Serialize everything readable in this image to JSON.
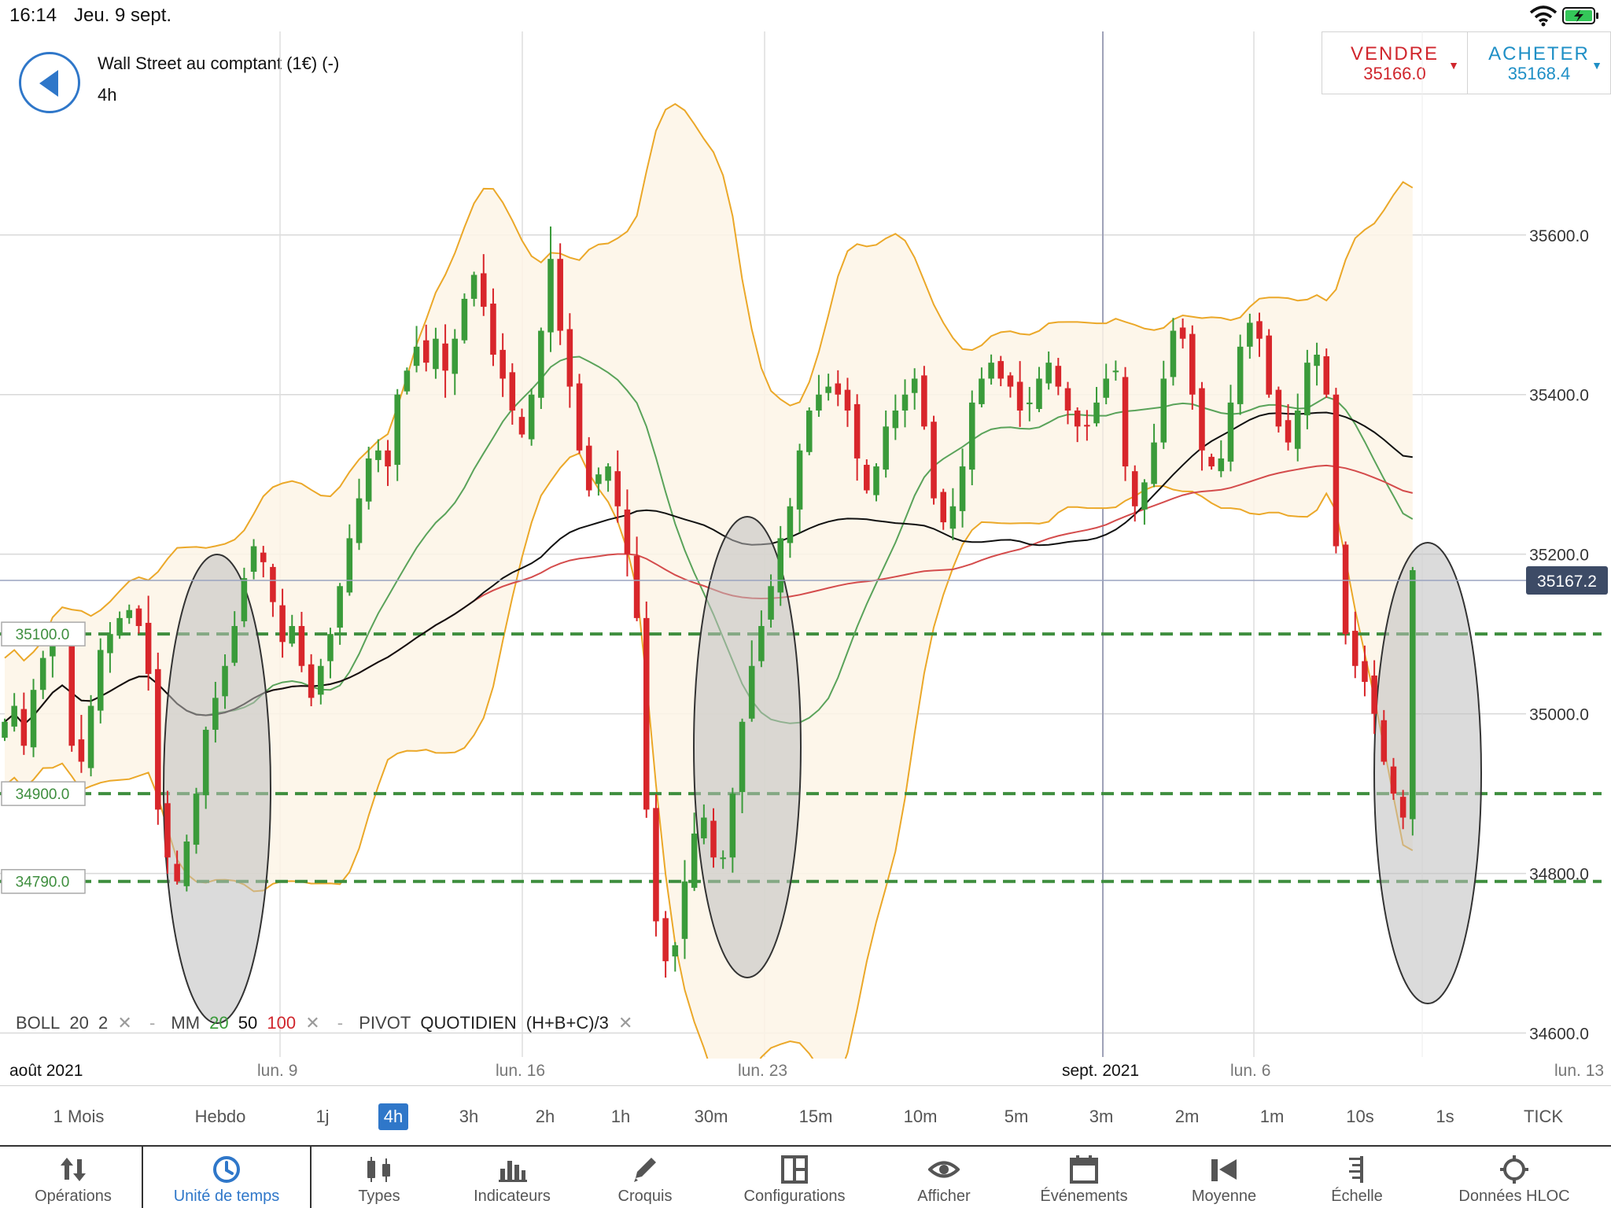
{
  "status_bar": {
    "time": "16:14",
    "date": "Jeu. 9 sept."
  },
  "header": {
    "instrument": "Wall Street au comptant (1€) (-)",
    "timeframe": "4h"
  },
  "trade": {
    "sell_label": "VENDRE",
    "sell_price": "35166.0",
    "buy_label": "ACHETER",
    "buy_price": "35168.4"
  },
  "colors": {
    "bull": "#3a9b3a",
    "bear": "#d8262b",
    "bollinger": "#eba829",
    "ma20": "#5aa35a",
    "ma50": "#111111",
    "ma100": "#d44c4c",
    "level": "#3e8e3e",
    "accent": "#2f77c9"
  },
  "chart_data": {
    "type": "candlestick",
    "ylim": [
      34570,
      35855
    ],
    "y_ticks": [
      "35600.0",
      "35400.0",
      "35200.0",
      "35000.0",
      "34800.0",
      "34600.0"
    ],
    "y_tick_values": [
      35600,
      35400,
      35200,
      35000,
      34800,
      34600
    ],
    "current_price": 35167.2,
    "current_price_label": "35167.2",
    "levels": [
      {
        "label": "35100.0",
        "value": 35100
      },
      {
        "label": "34900.0",
        "value": 34900
      },
      {
        "label": "34790.0",
        "value": 34790
      }
    ],
    "x_labels": [
      "août 2021",
      "lun. 9",
      "lun. 16",
      "lun. 23",
      "sept. 2021",
      "lun. 6",
      "lun. 13"
    ],
    "closes": [
      34990,
      35010,
      34960,
      35030,
      35070,
      35100,
      35090,
      34960,
      34940,
      35010,
      35080,
      35100,
      35120,
      35130,
      35110,
      35050,
      34880,
      34820,
      34790,
      34840,
      34900,
      34980,
      35020,
      35060,
      35110,
      35170,
      35210,
      35190,
      35140,
      35090,
      35110,
      35060,
      35020,
      35060,
      35100,
      35160,
      35220,
      35270,
      35320,
      35330,
      35310,
      35400,
      35430,
      35460,
      35440,
      35470,
      35430,
      35470,
      35520,
      35550,
      35510,
      35450,
      35420,
      35380,
      35350,
      35400,
      35480,
      35570,
      35480,
      35410,
      35330,
      35280,
      35300,
      35310,
      35260,
      35200,
      35120,
      34880,
      34740,
      34690,
      34710,
      34790,
      34850,
      34870,
      34820,
      34820,
      34900,
      34990,
      35060,
      35110,
      35160,
      35220,
      35260,
      35330,
      35380,
      35400,
      35410,
      35400,
      35380,
      35320,
      35280,
      35310,
      35360,
      35380,
      35400,
      35420,
      35360,
      35270,
      35240,
      35260,
      35310,
      35390,
      35420,
      35440,
      35420,
      35410,
      35380,
      35390,
      35420,
      35440,
      35410,
      35380,
      35360,
      35360,
      35390,
      35420,
      35430,
      35310,
      35260,
      35290,
      35340,
      35420,
      35480,
      35470,
      35400,
      35330,
      35310,
      35320,
      35390,
      35460,
      35490,
      35470,
      35400,
      35360,
      35340,
      35380,
      35440,
      35450,
      35400,
      35210,
      35100,
      35060,
      35040,
      35000,
      34940,
      34900,
      34870,
      35180
    ],
    "spans": [
      26,
      18,
      30,
      22,
      15,
      36,
      20,
      28,
      40,
      17,
      24,
      33,
      19,
      26,
      22,
      45,
      30,
      26,
      38,
      21,
      29,
      35,
      24,
      19,
      33,
      27,
      22,
      40,
      29,
      25,
      18,
      31,
      26,
      22,
      35,
      28,
      20,
      37,
      24,
      30,
      41,
      26,
      19,
      33,
      28,
      22,
      60,
      36,
      25,
      44,
      30,
      27,
      38,
      22,
      29,
      33,
      40,
      55,
      28,
      36,
      24,
      30,
      42,
      26,
      33,
      38,
      45,
      50,
      60,
      44,
      30,
      34,
      40,
      28,
      35,
      22,
      30,
      36,
      42,
      28,
      24,
      34,
      29,
      40,
      25,
      31,
      22,
      28,
      33,
      38,
      26,
      30,
      24,
      29,
      34,
      27,
      36,
      31,
      22,
      28,
      33,
      25,
      30,
      28,
      22,
      26,
      33,
      28,
      24,
      30,
      27,
      35,
      31,
      22,
      28,
      33,
      26,
      38,
      30,
      24,
      29,
      33,
      27,
      22,
      30,
      34,
      26,
      28,
      33,
      25,
      22,
      30,
      36,
      28,
      24,
      31,
      27,
      33,
      26,
      40,
      36,
      30,
      28,
      34,
      26,
      30,
      42,
      44
    ],
    "window": {
      "from": 0,
      "to": 148
    }
  },
  "indicators": {
    "boll": "BOLL",
    "boll_period": "20",
    "boll_dev": "2",
    "mm": "MM",
    "mm_1": "20",
    "mm_2": "50",
    "mm_3": "100",
    "pivot": "PIVOT",
    "pivot_mode": "QUOTIDIEN",
    "pivot_formula": "(H+B+C)/3",
    "close": "✕",
    "sep": "-"
  },
  "timeframes": [
    "1 Mois",
    "Hebdo",
    "1j",
    "4h",
    "3h",
    "2h",
    "1h",
    "30m",
    "15m",
    "10m",
    "5m",
    "3m",
    "2m",
    "1m",
    "10s",
    "1s",
    "TICK"
  ],
  "timeframe_active": "4h",
  "toolbar": [
    {
      "name": "operations",
      "label": "Opérations",
      "icon": "up-down-arrows-icon"
    },
    {
      "name": "timeframe",
      "label": "Unité de temps",
      "icon": "clock-icon"
    },
    {
      "name": "types",
      "label": "Types",
      "icon": "candles-icon"
    },
    {
      "name": "indicators",
      "label": "Indicateurs",
      "icon": "bar-chart-icon"
    },
    {
      "name": "drawings",
      "label": "Croquis",
      "icon": "pencil-icon"
    },
    {
      "name": "configurations",
      "label": "Configurations",
      "icon": "layout-icon"
    },
    {
      "name": "display",
      "label": "Afficher",
      "icon": "eye-icon"
    },
    {
      "name": "events",
      "label": "Événements",
      "icon": "calendar-icon"
    },
    {
      "name": "average",
      "label": "Moyenne",
      "icon": "average-icon"
    },
    {
      "name": "scale",
      "label": "Échelle",
      "icon": "scale-icon"
    },
    {
      "name": "hloc",
      "label": "Données HLOC",
      "icon": "crosshair-icon"
    }
  ]
}
